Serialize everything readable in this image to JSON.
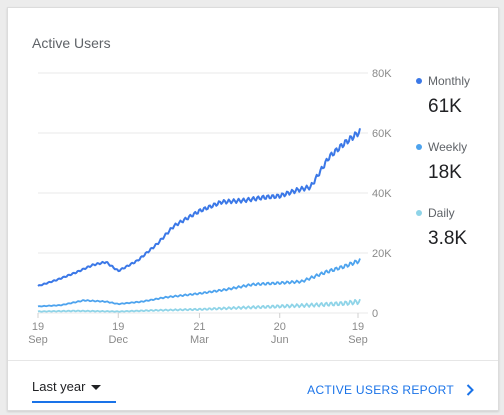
{
  "card": {
    "title": "Active Users"
  },
  "legend": [
    {
      "label": "Monthly",
      "value": "61K",
      "color": "#3b78e7"
    },
    {
      "label": "Weekly",
      "value": "18K",
      "color": "#4da3ee"
    },
    {
      "label": "Daily",
      "value": "3.8K",
      "color": "#8fd4e8"
    }
  ],
  "footer": {
    "range_label": "Last year",
    "report_label": "ACTIVE USERS REPORT",
    "caret_icon": "caret-down-icon",
    "chevron_icon": "chevron-right-icon"
  },
  "chart_data": {
    "type": "line",
    "y_ticks": [
      "80K",
      "60K",
      "40K",
      "20K",
      "0"
    ],
    "y_tick_values": [
      80000,
      60000,
      40000,
      20000,
      0
    ],
    "ylim": [
      0,
      80000
    ],
    "x_ticks": [
      {
        "day": "19",
        "month": "Sep",
        "date": "2018-09-19"
      },
      {
        "day": "19",
        "month": "Dec",
        "date": "2018-12-19"
      },
      {
        "day": "21",
        "month": "Mar",
        "date": "2019-03-21"
      },
      {
        "day": "20",
        "month": "Jun",
        "date": "2019-06-20"
      },
      {
        "day": "19",
        "month": "Sep",
        "date": "2019-09-19"
      }
    ],
    "x_range": [
      "2018-09-19",
      "2019-09-19"
    ],
    "grid": true,
    "series": [
      {
        "name": "Monthly",
        "color": "#3b78e7",
        "x": [
          "2018-09-19",
          "2018-10-10",
          "2018-11-01",
          "2018-11-20",
          "2018-12-05",
          "2018-12-19",
          "2019-01-10",
          "2019-02-01",
          "2019-02-20",
          "2019-03-21",
          "2019-04-15",
          "2019-05-10",
          "2019-06-01",
          "2019-06-20",
          "2019-07-10",
          "2019-07-25",
          "2019-08-15",
          "2019-09-01",
          "2019-09-19"
        ],
        "values": [
          9000,
          11000,
          13500,
          16000,
          17000,
          14000,
          17500,
          23000,
          29000,
          34000,
          37000,
          37500,
          38500,
          39000,
          41000,
          42000,
          52000,
          56500,
          60500
        ]
      },
      {
        "name": "Weekly",
        "color": "#4da3ee",
        "x": [
          "2018-09-19",
          "2018-10-15",
          "2018-11-10",
          "2018-12-05",
          "2018-12-19",
          "2019-01-15",
          "2019-02-10",
          "2019-03-21",
          "2019-04-20",
          "2019-05-20",
          "2019-06-20",
          "2019-07-15",
          "2019-08-10",
          "2019-09-01",
          "2019-09-19"
        ],
        "values": [
          2200,
          2600,
          4200,
          3800,
          3000,
          3800,
          5200,
          6500,
          7800,
          9500,
          10000,
          10500,
          13500,
          15500,
          17500
        ]
      },
      {
        "name": "Daily",
        "color": "#8fd4e8",
        "x": [
          "2018-09-19",
          "2018-11-01",
          "2018-12-19",
          "2019-02-01",
          "2019-03-21",
          "2019-05-01",
          "2019-06-20",
          "2019-08-01",
          "2019-09-01",
          "2019-09-19"
        ],
        "values": [
          500,
          700,
          500,
          900,
          1200,
          1700,
          2200,
          2700,
          3200,
          3800
        ]
      }
    ]
  }
}
